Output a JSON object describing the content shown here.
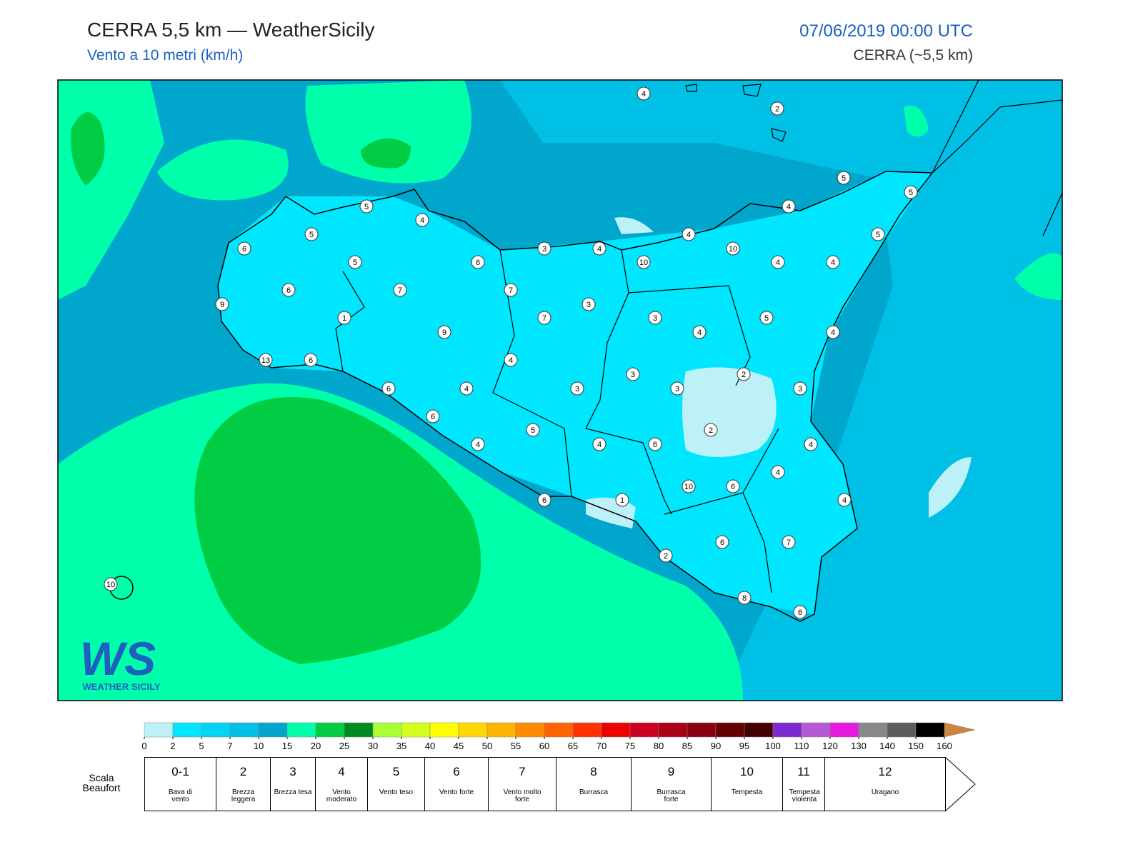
{
  "header": {
    "title": "CERRA 5,5 km — WeatherSicily",
    "subtitle": "Vento a 10 metri (km/h)",
    "datetime": "07/06/2019 00:00 UTC",
    "model": "CERRA (~5,5 km)"
  },
  "logo": {
    "mark": "WS",
    "text": "WEATHER SICILY"
  },
  "stations": [
    4,
    2,
    5,
    5,
    4,
    5,
    4,
    5,
    4,
    5,
    6,
    3,
    4,
    10,
    5,
    6,
    10,
    4,
    4,
    6,
    7,
    7,
    9,
    3,
    1,
    7,
    3,
    5,
    9,
    4,
    4,
    13,
    6,
    4,
    3,
    2,
    6,
    4,
    3,
    3,
    3,
    6,
    2,
    5,
    4,
    4,
    6,
    4,
    4,
    10,
    6,
    1,
    6,
    4,
    2,
    6,
    7,
    8,
    6,
    10
  ],
  "colorbar": {
    "ticks": [
      0,
      2,
      5,
      7,
      10,
      15,
      20,
      25,
      30,
      35,
      40,
      45,
      50,
      55,
      60,
      65,
      70,
      75,
      80,
      85,
      90,
      95,
      100,
      110,
      120,
      130,
      140,
      150,
      160
    ],
    "colors": [
      "#bdf1f8",
      "#00e6ff",
      "#00d4f5",
      "#00c0e6",
      "#00a6cc",
      "#00ffaa",
      "#00cc44",
      "#008a22",
      "#aaff33",
      "#d4ff1a",
      "#ffff00",
      "#ffd800",
      "#ffb400",
      "#ff8c00",
      "#ff6400",
      "#ff3200",
      "#ee0000",
      "#cc0022",
      "#aa0016",
      "#880010",
      "#660000",
      "#440000",
      "#7b2bd0",
      "#b55ad6",
      "#e619e0",
      "#888888",
      "#5c5c5c",
      "#000000",
      "#8b4a2b",
      "#cd853f"
    ]
  },
  "beaufort": {
    "title": "Scala Beaufort",
    "levels": [
      {
        "force": "0-1",
        "label": "Bava di vento"
      },
      {
        "force": "2",
        "label": "Brezza leggera"
      },
      {
        "force": "3",
        "label": "Brezza tesa"
      },
      {
        "force": "4",
        "label": "Vento moderato"
      },
      {
        "force": "5",
        "label": "Vento teso"
      },
      {
        "force": "6",
        "label": "Vento forte"
      },
      {
        "force": "7",
        "label": "Vento molto forte"
      },
      {
        "force": "8",
        "label": "Burrasca"
      },
      {
        "force": "9",
        "label": "Burrasca forte"
      },
      {
        "force": "10",
        "label": "Tempesta"
      },
      {
        "force": "11",
        "label": "Tempesta violenta"
      },
      {
        "force": "12",
        "label": "Uragano"
      }
    ]
  }
}
